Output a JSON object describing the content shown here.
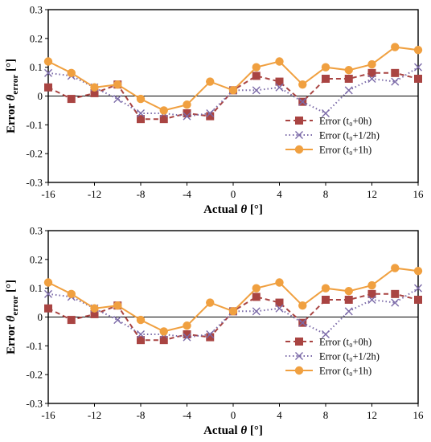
{
  "chart_data": [
    {
      "type": "line",
      "title": "",
      "xlabel": "Actual θ [°]",
      "xlabel_parts": {
        "prefix": "Actual ",
        "symbol": "θ",
        "suffix": " [°]"
      },
      "ylabel": "Error θerror [°]",
      "ylabel_parts": {
        "prefix": "Error ",
        "symbol": "θ",
        "subscript": "error",
        "suffix": " [°]"
      },
      "xlim": [
        -16,
        16
      ],
      "ylim": [
        -0.3,
        0.3
      ],
      "x_ticks": [
        -16,
        -12,
        -8,
        -4,
        0,
        4,
        8,
        12,
        16
      ],
      "y_ticks": [
        -0.3,
        -0.2,
        -0.1,
        0,
        0.1,
        0.2,
        0.3
      ],
      "grid": false,
      "legend_position": "bottom-right",
      "x": [
        -16,
        -14,
        -12,
        -10,
        -8,
        -6,
        -4,
        -2,
        0,
        2,
        4,
        6,
        8,
        10,
        12,
        14,
        16
      ],
      "series": [
        {
          "name": "Error (t₀+0h)",
          "color": "#a94442",
          "marker": "square",
          "line": "dashed",
          "values": [
            0.03,
            -0.01,
            0.01,
            0.04,
            -0.08,
            -0.08,
            -0.06,
            -0.07,
            0.02,
            0.07,
            0.05,
            -0.02,
            0.06,
            0.06,
            0.08,
            0.08,
            0.06
          ]
        },
        {
          "name": "Error (t₀+1/2h)",
          "color": "#7b6aa8",
          "marker": "x",
          "line": "dotted",
          "values": [
            0.08,
            0.07,
            0.03,
            -0.01,
            -0.06,
            -0.06,
            -0.07,
            -0.06,
            0.02,
            0.02,
            0.03,
            -0.02,
            -0.06,
            0.02,
            0.06,
            0.05,
            0.1
          ]
        },
        {
          "name": "Error (t₀+1h)",
          "color": "#f0a040",
          "marker": "circle",
          "line": "solid",
          "values": [
            0.12,
            0.08,
            0.03,
            0.04,
            -0.01,
            -0.05,
            -0.03,
            0.05,
            0.02,
            0.1,
            0.12,
            0.04,
            0.1,
            0.09,
            0.11,
            0.17,
            0.16
          ]
        }
      ]
    },
    {
      "type": "line",
      "title": "",
      "xlabel": "Actual θ [°]",
      "xlabel_parts": {
        "prefix": "Actual ",
        "symbol": "θ",
        "suffix": " [°]"
      },
      "ylabel": "Error θerror [°]",
      "ylabel_parts": {
        "prefix": "Error ",
        "symbol": "θ",
        "subscript": "error",
        "suffix": " [°]"
      },
      "xlim": [
        -16,
        16
      ],
      "ylim": [
        -0.3,
        0.3
      ],
      "x_ticks": [
        -16,
        -12,
        -8,
        -4,
        0,
        4,
        8,
        12,
        16
      ],
      "y_ticks": [
        -0.3,
        -0.2,
        -0.1,
        0,
        0.1,
        0.2,
        0.3
      ],
      "grid": false,
      "legend_position": "bottom-right",
      "x": [
        -16,
        -14,
        -12,
        -10,
        -8,
        -6,
        -4,
        -2,
        0,
        2,
        4,
        6,
        8,
        10,
        12,
        14,
        16
      ],
      "series": [
        {
          "name": "Error (t₀+0h)",
          "color": "#a94442",
          "marker": "square",
          "line": "dashed",
          "values": [
            0.03,
            -0.01,
            0.01,
            0.04,
            -0.08,
            -0.08,
            -0.06,
            -0.07,
            0.02,
            0.07,
            0.05,
            -0.02,
            0.06,
            0.06,
            0.08,
            0.08,
            0.06
          ]
        },
        {
          "name": "Error (t₀+1/2h)",
          "color": "#7b6aa8",
          "marker": "x",
          "line": "dotted",
          "values": [
            0.08,
            0.07,
            0.03,
            -0.01,
            -0.06,
            -0.06,
            -0.07,
            -0.06,
            0.02,
            0.02,
            0.03,
            -0.02,
            -0.06,
            0.02,
            0.06,
            0.05,
            0.1
          ]
        },
        {
          "name": "Error (t₀+1h)",
          "color": "#f0a040",
          "marker": "circle",
          "line": "solid",
          "values": [
            0.12,
            0.08,
            0.03,
            0.04,
            -0.01,
            -0.05,
            -0.03,
            0.05,
            0.02,
            0.1,
            0.12,
            0.04,
            0.1,
            0.09,
            0.11,
            0.17,
            0.16
          ]
        }
      ]
    }
  ]
}
